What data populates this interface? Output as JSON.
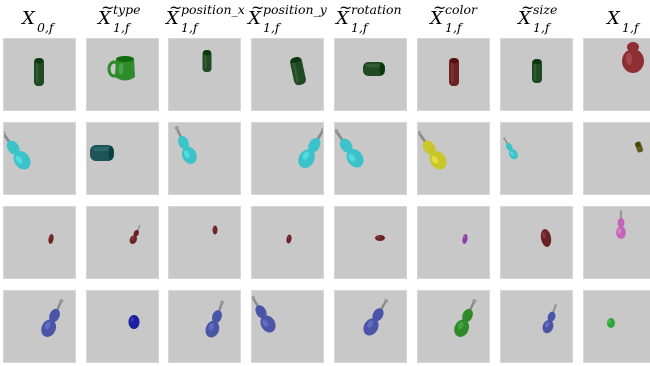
{
  "columns": [
    {
      "base": "X",
      "tilde": false,
      "sup": "",
      "sub": "0,f"
    },
    {
      "base": "X",
      "tilde": true,
      "sup": "type",
      "sub": "1,f"
    },
    {
      "base": "X",
      "tilde": true,
      "sup": "position_x",
      "sub": "1,f"
    },
    {
      "base": "X",
      "tilde": true,
      "sup": "position_y",
      "sub": "1,f"
    },
    {
      "base": "X",
      "tilde": true,
      "sup": "rotation",
      "sub": "1,f"
    },
    {
      "base": "X",
      "tilde": true,
      "sup": "color",
      "sub": "1,f"
    },
    {
      "base": "X",
      "tilde": true,
      "sup": "size",
      "sub": "1,f"
    },
    {
      "base": "X",
      "tilde": false,
      "sup": "",
      "sub": "1,f"
    }
  ],
  "tilde_glyph": "~",
  "object_colors": {
    "dark_green": "#1f4a22",
    "green": "#2f8a2a",
    "red": "#8e2f33",
    "cyan": "#3cc2c9",
    "teal": "#1d5457",
    "yellow": "#c9c62a",
    "olive": "#5b5a18",
    "maroon": "#6b2222",
    "purple": "#8a3fa0",
    "blue": "#4a55a8",
    "navy": "#1b1fa0",
    "bright_green": "#2fa63a",
    "pink": "#c466b8",
    "tile_background": "#c8c8c8"
  },
  "rows": [
    {
      "objects": [
        "dark_green cylinder",
        "green mug",
        "dark_green cylinder",
        "dark_green cylinder",
        "dark_green cylinder",
        "maroon cylinder",
        "dark_green cylinder",
        "red vase"
      ]
    },
    {
      "objects": [
        "cyan bottle",
        "teal cylinder",
        "cyan bottle",
        "cyan bottle",
        "cyan bottle",
        "yellow bottle",
        "cyan bottle",
        "olive cylinder"
      ]
    },
    {
      "objects": [
        "maroon drop",
        "maroon bottle",
        "maroon drop",
        "maroon drop",
        "maroon drop",
        "purple drop",
        "maroon drop",
        "pink bottle"
      ]
    },
    {
      "objects": [
        "blue bottle",
        "navy drop",
        "blue bottle",
        "blue bottle",
        "blue bottle",
        "green bottle",
        "blue bottle",
        "bright_green drop"
      ]
    }
  ]
}
